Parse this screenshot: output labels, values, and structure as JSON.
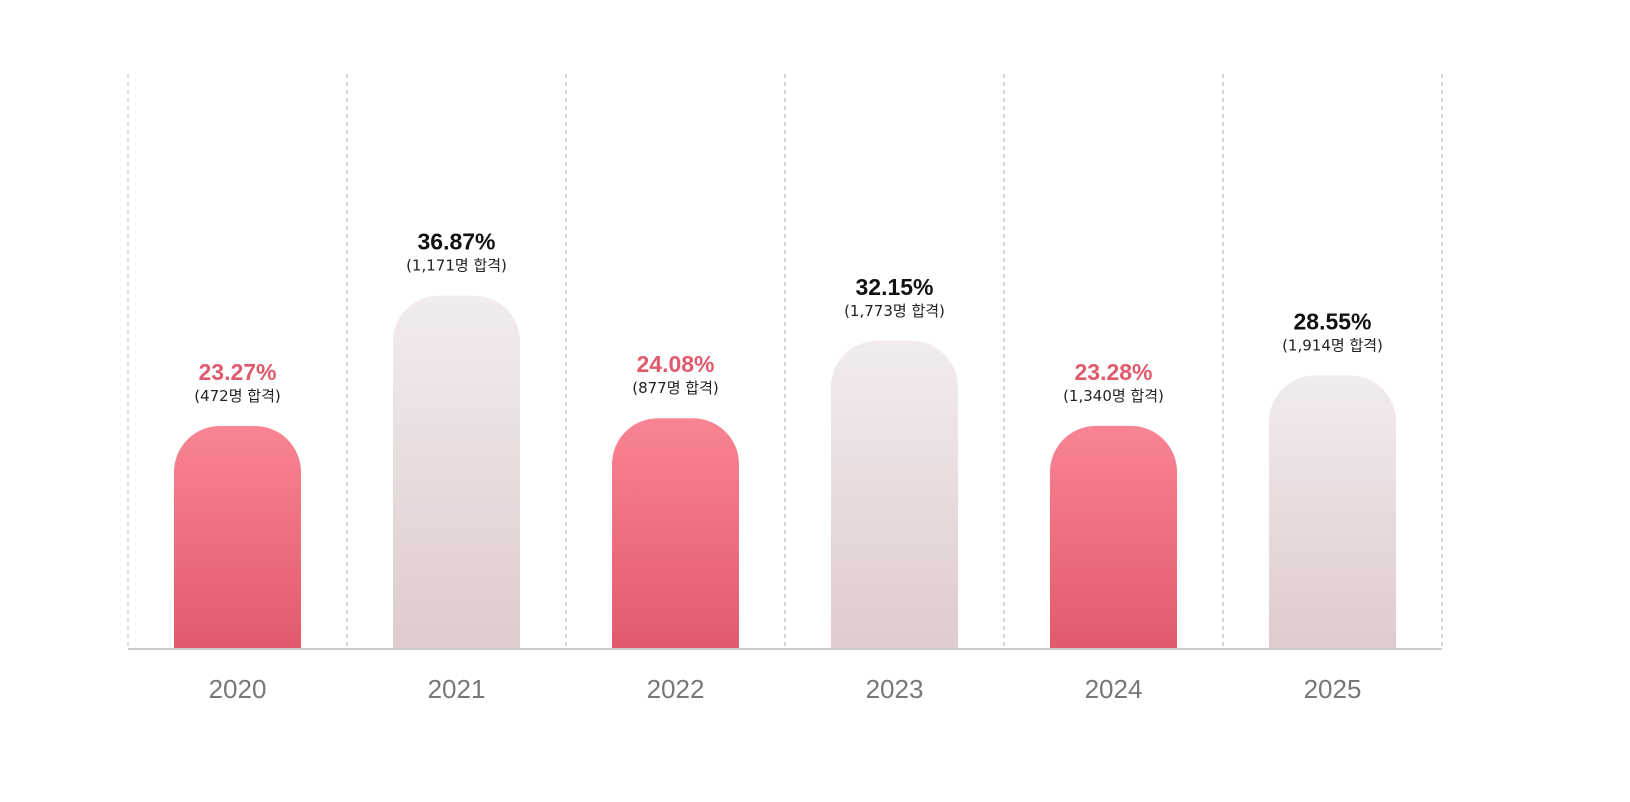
{
  "chart_data": {
    "type": "bar",
    "categories": [
      "2020",
      "2021",
      "2022",
      "2023",
      "2024",
      "2025"
    ],
    "values": [
      23.27,
      36.87,
      24.08,
      32.15,
      23.28,
      28.55
    ],
    "value_labels": [
      "23.27%",
      "36.87%",
      "24.08%",
      "32.15%",
      "23.28%",
      "28.55%"
    ],
    "sub_labels": [
      "(472명 합격)",
      "(1,171명 합격)",
      "(877명 합격)",
      "(1,773명 합격)",
      "(1,340명 합격)",
      "(1,914명 합격)"
    ],
    "highlighted": [
      true,
      false,
      true,
      false,
      true,
      false
    ],
    "ylim": [
      0,
      60
    ],
    "grid": "vertical-dashed",
    "colors": {
      "highlight_top": "#f98493",
      "highlight_bottom": "#e05a6d",
      "highlight_label": "#e05a6d",
      "muted_top": "#f2eced",
      "muted_bottom": "#decbcd",
      "muted_label": "#111111",
      "category_label": "#777777",
      "grid": "#cccccc",
      "axis": "#cccccc"
    }
  }
}
